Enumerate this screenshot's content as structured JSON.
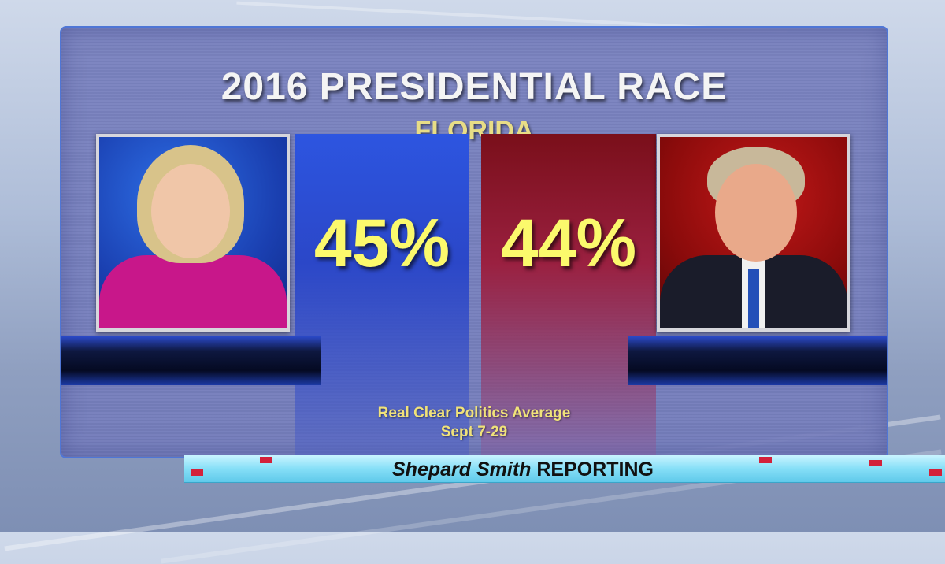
{
  "graphic": {
    "title": "2016 PRESIDENTIAL RACE",
    "subtitle": "FLORIDA",
    "left": {
      "percent": "45%",
      "color": "#2b47c8"
    },
    "right": {
      "percent": "44%",
      "color": "#8a0b0b"
    },
    "source_line1": "Real Clear Politics Average",
    "source_line2": "Sept 7-29"
  },
  "ticker": {
    "show_name": "Shepard Smith",
    "show_suffix": "REPORTING"
  }
}
